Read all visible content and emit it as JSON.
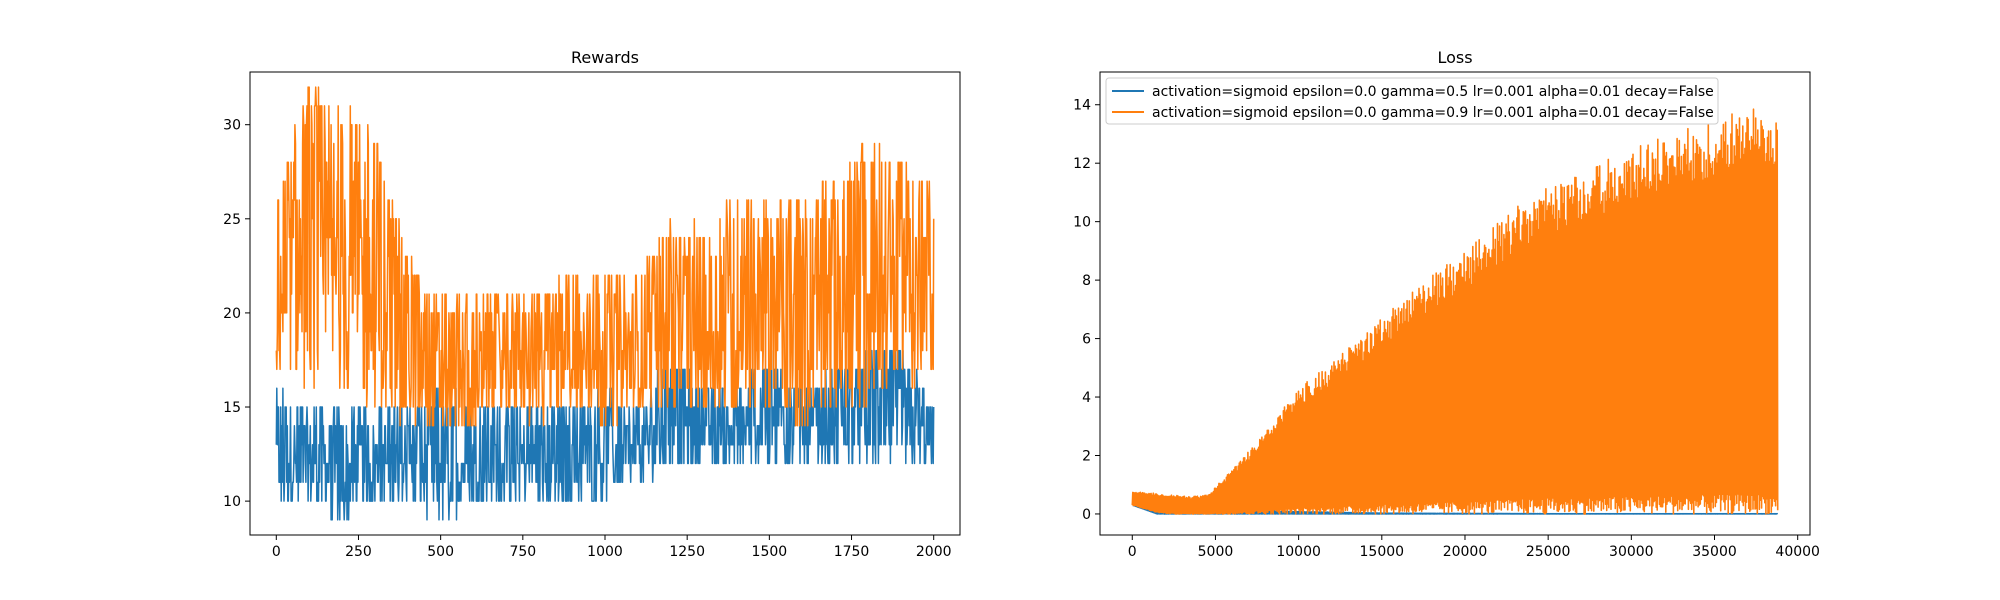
{
  "chart_data": [
    {
      "type": "line",
      "title": "Rewards",
      "xlabel": "",
      "ylabel": "",
      "xlim": [
        -80,
        2080
      ],
      "ylim": [
        8.2,
        32.8
      ],
      "x_ticks": [
        0,
        250,
        500,
        750,
        1000,
        1250,
        1500,
        1750,
        2000
      ],
      "y_ticks": [
        10,
        15,
        20,
        25,
        30
      ],
      "grid": false,
      "legend": "none",
      "series": [
        {
          "color": "#1f77b4",
          "approx_envelope": {
            "x": [
              0,
              100,
              200,
              300,
              400,
              500,
              600,
              700,
              800,
              900,
              1000,
              1100,
              1200,
              1300,
              1400,
              1500,
              1600,
              1700,
              1800,
              1900,
              2000
            ],
            "low": [
              10,
              10,
              9,
              10,
              10,
              9,
              10,
              10,
              10,
              10,
              10,
              11,
              12,
              12,
              12,
              12,
              12,
              12,
              12,
              12,
              12
            ],
            "high": [
              16,
              15,
              15,
              15,
              15,
              16,
              15,
              15,
              15,
              15,
              16,
              15,
              18,
              16,
              16,
              18,
              16,
              17,
              18,
              18,
              15
            ]
          }
        },
        {
          "color": "#ff7f0e",
          "approx_envelope": {
            "x": [
              0,
              100,
              200,
              300,
              400,
              500,
              600,
              700,
              800,
              900,
              1000,
              1100,
              1200,
              1300,
              1400,
              1500,
              1600,
              1700,
              1800,
              1900,
              2000
            ],
            "low": [
              17,
              16,
              16,
              15,
              14,
              14,
              14,
              15,
              14,
              15,
              14,
              15,
              15,
              15,
              15,
              15,
              14,
              15,
              15,
              16,
              17
            ],
            "high": [
              27,
              32,
              31,
              30,
              23,
              21,
              21,
              21,
              21,
              22,
              22,
              22,
              25,
              25,
              26,
              26,
              26,
              27,
              29,
              28,
              27
            ]
          }
        }
      ]
    },
    {
      "type": "line",
      "title": "Loss",
      "xlabel": "",
      "ylabel": "",
      "xlim": [
        -1940,
        40740
      ],
      "ylim": [
        -0.72,
        15.12
      ],
      "x_ticks": [
        0,
        5000,
        10000,
        15000,
        20000,
        25000,
        30000,
        35000,
        40000
      ],
      "y_ticks": [
        0,
        2,
        4,
        6,
        8,
        10,
        12,
        14
      ],
      "grid": false,
      "legend": "upper left",
      "series": [
        {
          "name": "activation=sigmoid epsilon=0.0 gamma=0.5 lr=0.001 alpha=0.01 decay=False",
          "color": "#1f77b4",
          "approx_envelope": {
            "x": [
              0,
              1500,
              2500,
              3500,
              4500,
              6000,
              8000,
              10000,
              15000,
              20000,
              25000,
              30000,
              35000,
              38800
            ],
            "low": [
              0.3,
              0.0,
              0.0,
              0.0,
              0.0,
              0.0,
              0.0,
              0.0,
              0.0,
              0.0,
              0.0,
              0.0,
              0.0,
              0.0
            ],
            "high": [
              0.4,
              0.1,
              0.05,
              0.1,
              0.15,
              0.15,
              0.12,
              0.08,
              0.03,
              0.02,
              0.01,
              0.01,
              0.01,
              0.01
            ]
          }
        },
        {
          "name": "activation=sigmoid epsilon=0.0 gamma=0.9 lr=0.001 alpha=0.01 decay=False",
          "color": "#ff7f0e",
          "approx_envelope": {
            "x": [
              0,
              1500,
              2500,
              3500,
              4500,
              6000,
              8000,
              10000,
              12000,
              15000,
              18000,
              20000,
              23000,
              25000,
              28000,
              30000,
              33000,
              35000,
              38000,
              38800
            ],
            "low": [
              0.3,
              0.05,
              0.0,
              0.0,
              0.0,
              0.0,
              0.0,
              0.0,
              0.0,
              0.0,
              0.0,
              0.0,
              0.0,
              0.0,
              0.0,
              0.0,
              0.0,
              0.0,
              0.0,
              0.0
            ],
            "high": [
              0.8,
              0.7,
              0.65,
              0.6,
              0.65,
              1.5,
              2.8,
              4.3,
              5.2,
              6.7,
              8.2,
              9.0,
              10.5,
              11.2,
              12.0,
              12.5,
              13.2,
              13.5,
              14.2,
              13.3
            ]
          }
        }
      ]
    }
  ]
}
